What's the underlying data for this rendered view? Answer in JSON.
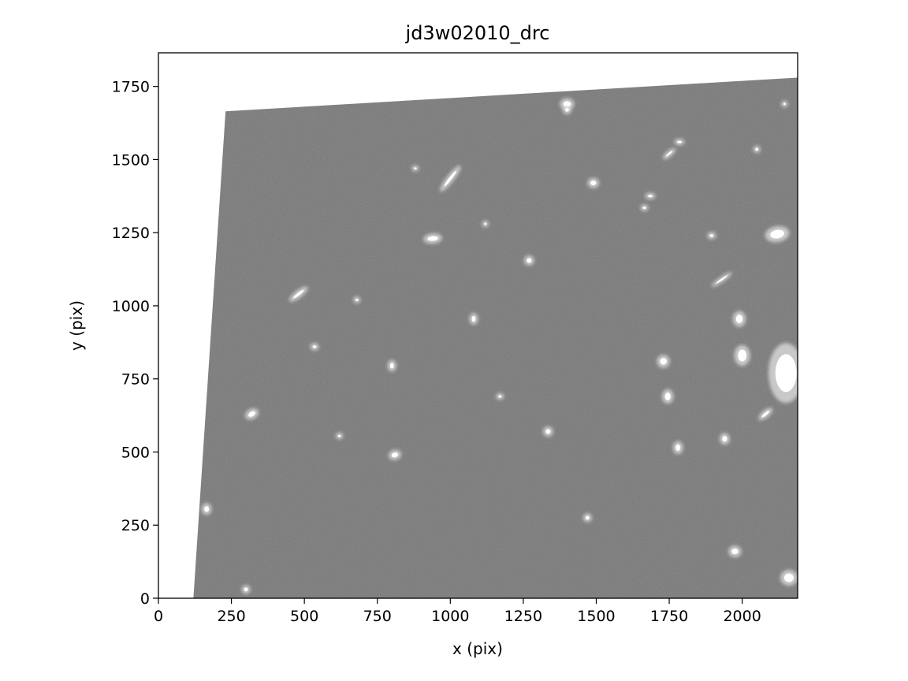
{
  "chart_data": {
    "type": "image",
    "title": "jd3w02010_drc",
    "xlabel": "x (pix)",
    "ylabel": "y (pix)",
    "xlim": [
      0,
      2190
    ],
    "ylim": [
      0,
      1865
    ],
    "xticks": [
      0,
      250,
      500,
      750,
      1000,
      1250,
      1500,
      1750,
      2000
    ],
    "yticks": [
      0,
      250,
      500,
      750,
      1000,
      1250,
      1500,
      1750
    ],
    "colormap": "gray",
    "frame_corners": [
      [
        120,
        0
      ],
      [
        2190,
        0
      ],
      [
        2190,
        1780
      ],
      [
        230,
        1665
      ]
    ],
    "background_color": "#6b6b6b",
    "sources": [
      [
        1400,
        1690,
        16,
        12,
        0
      ],
      [
        2145,
        1690,
        5,
        5,
        0
      ],
      [
        1490,
        1420,
        12,
        10,
        0
      ],
      [
        1665,
        1335,
        7,
        5,
        0
      ],
      [
        2120,
        1245,
        30,
        18,
        -10
      ],
      [
        1895,
        1240,
        8,
        6,
        0
      ],
      [
        940,
        1230,
        22,
        10,
        -5
      ],
      [
        1270,
        1155,
        10,
        10,
        0
      ],
      [
        1685,
        1375,
        10,
        5,
        0
      ],
      [
        2050,
        1535,
        6,
        6,
        0
      ],
      [
        1785,
        1560,
        10,
        5,
        0
      ],
      [
        1080,
        955,
        8,
        12,
        0
      ],
      [
        480,
        1040,
        28,
        6,
        -38
      ],
      [
        680,
        1020,
        6,
        5,
        0
      ],
      [
        535,
        860,
        8,
        6,
        0
      ],
      [
        1990,
        955,
        14,
        18,
        0
      ],
      [
        2000,
        830,
        18,
        25,
        0
      ],
      [
        2150,
        770,
        45,
        80,
        0
      ],
      [
        1730,
        810,
        14,
        14,
        0
      ],
      [
        1745,
        690,
        12,
        16,
        0
      ],
      [
        320,
        630,
        16,
        10,
        -30
      ],
      [
        800,
        795,
        8,
        12,
        0
      ],
      [
        1335,
        570,
        10,
        10,
        0
      ],
      [
        810,
        490,
        14,
        10,
        -15
      ],
      [
        1780,
        515,
        10,
        14,
        0
      ],
      [
        1940,
        545,
        10,
        12,
        0
      ],
      [
        1470,
        275,
        8,
        8,
        0
      ],
      [
        165,
        305,
        10,
        12,
        0
      ],
      [
        300,
        30,
        8,
        8,
        0
      ],
      [
        1975,
        160,
        14,
        12,
        0
      ],
      [
        2160,
        70,
        20,
        18,
        0
      ],
      [
        1000,
        1435,
        42,
        6,
        -52
      ],
      [
        2080,
        630,
        20,
        6,
        -40
      ],
      [
        1400,
        1670,
        8,
        8,
        0
      ],
      [
        880,
        1470,
        6,
        4,
        0
      ],
      [
        1120,
        1280,
        5,
        5,
        0
      ],
      [
        620,
        555,
        6,
        5,
        0
      ],
      [
        1170,
        690,
        7,
        5,
        0
      ],
      [
        1750,
        1520,
        18,
        4,
        -40
      ],
      [
        1930,
        1090,
        30,
        3,
        -35
      ]
    ]
  }
}
